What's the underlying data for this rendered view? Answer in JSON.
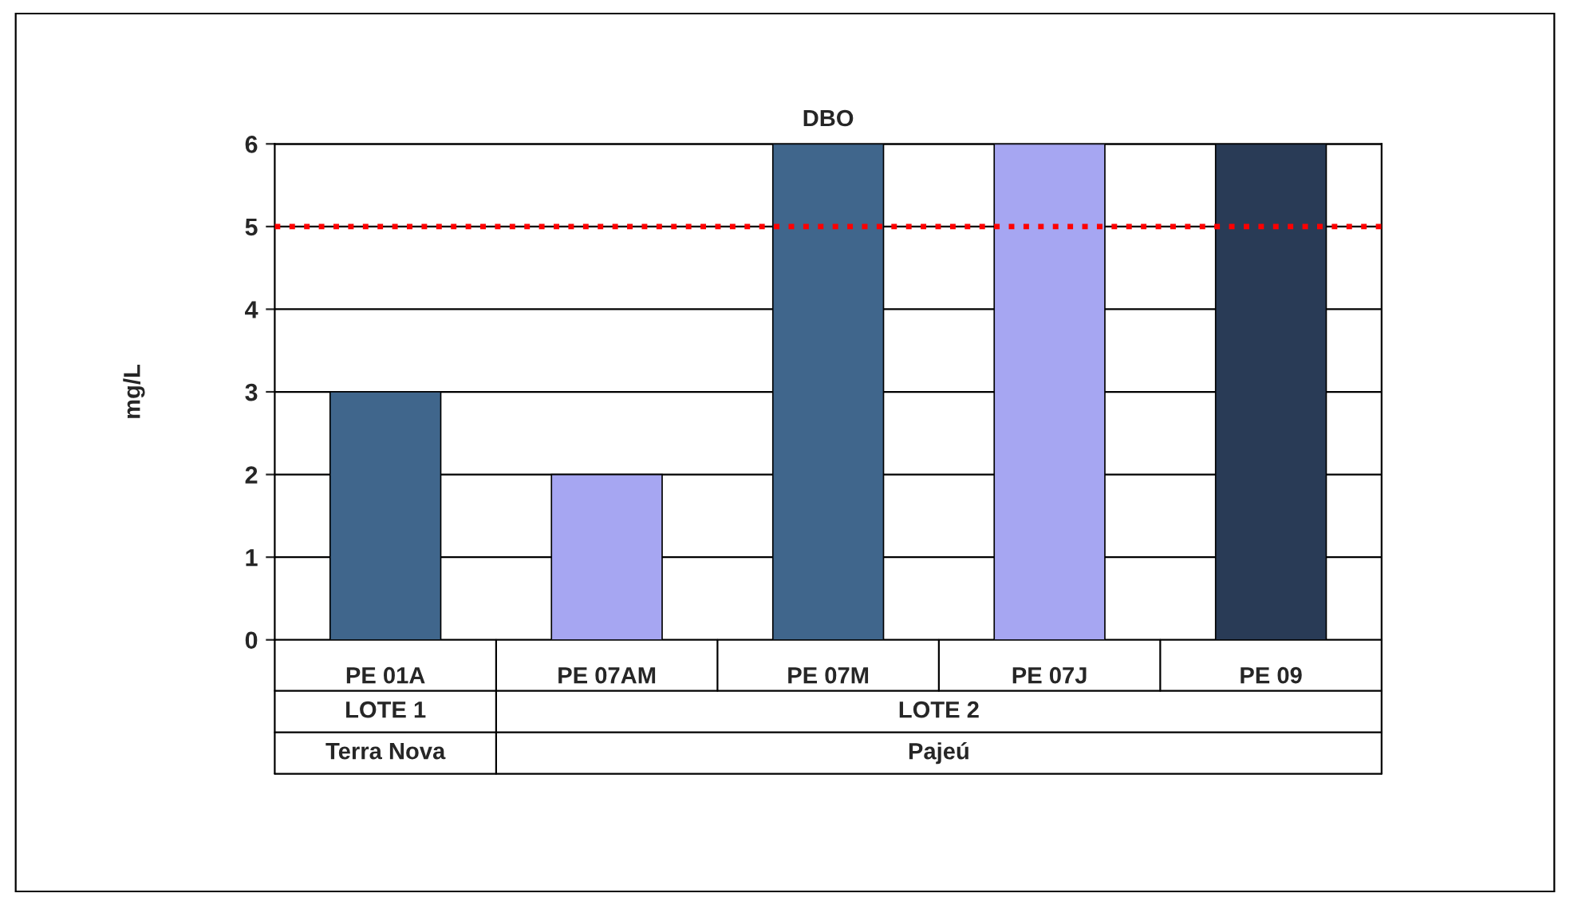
{
  "chart_data": {
    "type": "bar",
    "title": "DBO",
    "ylabel": "mg/L",
    "categories": [
      "PE 01A",
      "PE 07AM",
      "PE 07M",
      "PE 07J",
      "PE 09"
    ],
    "values": [
      3,
      2,
      6,
      6,
      6
    ],
    "colors": [
      "#336699",
      "#9999ff",
      "#336699",
      "#9999ff",
      "#223a5e"
    ],
    "ylim": [
      0,
      6
    ],
    "yticks": [
      0,
      1,
      2,
      3,
      4,
      5,
      6
    ],
    "grid": "y",
    "legend": false,
    "ref_lines": [
      {
        "axis": "y",
        "value": 5,
        "color": "#ff0000",
        "line_style": "dotted"
      }
    ],
    "annotations": [
      "LOTE 1",
      "LOTE 2",
      "Terra Nova",
      "Pajeú"
    ]
  }
}
